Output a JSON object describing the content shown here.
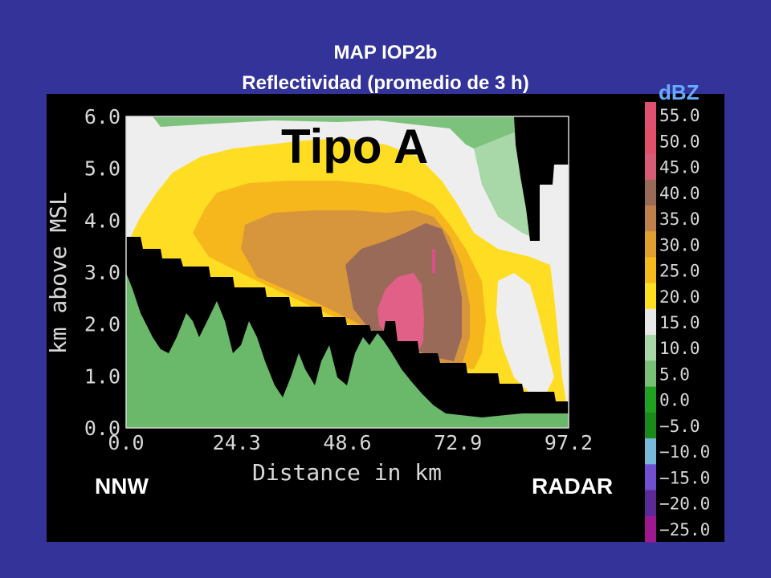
{
  "slide": {
    "title_line1": "MAP IOP2b",
    "title_line2": "Reflectividad (promedio de 3 h)",
    "background": "#333399"
  },
  "chart_data": {
    "type": "heatmap",
    "title": "Tipo A",
    "xlabel": "Distance in km",
    "ylabel": "km above MSL",
    "x_ticks": [
      "0.0",
      "24.3",
      "48.6",
      "72.9",
      "97.2"
    ],
    "y_ticks": [
      "0.0",
      "1.0",
      "2.0",
      "3.0",
      "4.0",
      "5.0",
      "6.0"
    ],
    "xlim": [
      0,
      97.2
    ],
    "ylim": [
      0,
      6
    ],
    "left_annotation": "NNW",
    "right_annotation": "RADAR",
    "colorbar": {
      "units": "dBZ",
      "levels": [
        {
          "label": "55.0",
          "color": "#e05070"
        },
        {
          "label": "50.0",
          "color": "#e05068"
        },
        {
          "label": "45.0",
          "color": "#d85c78"
        },
        {
          "label": "40.0",
          "color": "#9a6a58"
        },
        {
          "label": "35.0",
          "color": "#c0804a"
        },
        {
          "label": "30.0",
          "color": "#e0a030"
        },
        {
          "label": "25.0",
          "color": "#f5bb1c"
        },
        {
          "label": "20.0",
          "color": "#ffe020"
        },
        {
          "label": "15.0",
          "color": "#e8e8e8"
        },
        {
          "label": "10.0",
          "color": "#a8d8a8"
        },
        {
          "label": "5.0",
          "color": "#78c078"
        },
        {
          "label": "0.0",
          "color": "#22a022"
        },
        {
          "label": "−5.0",
          "color": "#1a8a1a"
        },
        {
          "label": "−10.0",
          "color": "#78b8d8"
        },
        {
          "label": "−15.0",
          "color": "#7050d0"
        },
        {
          "label": "−20.0",
          "color": "#5a2a98"
        },
        {
          "label": "−25.0",
          "color": "#a01890"
        }
      ]
    },
    "field": {
      "background": "#eeeeee",
      "terrain": "#6ab86a",
      "blocked": "#000000",
      "high_green": "#7cc27c",
      "light_green": "#a8d8a8",
      "yellow": "#ffdd22",
      "orange": "#f6b71c",
      "tan": "#d8963c",
      "brown": "#9a6a58",
      "pink": "#e06088",
      "magenta": "#d8508a"
    }
  }
}
